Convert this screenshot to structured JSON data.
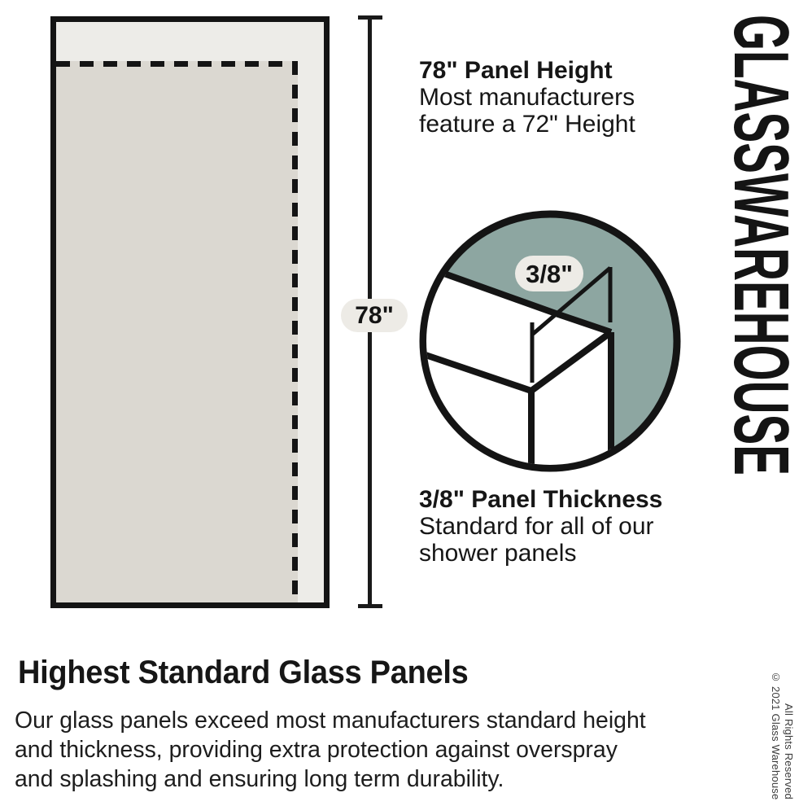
{
  "brand": {
    "name": "GLASSWAREHOUSE"
  },
  "panel_diagram": {
    "height_badge": "78\"",
    "height_callout": {
      "title": "78\" Panel Height",
      "lines": [
        "Most manufacturers",
        "feature a 72\" Height"
      ]
    }
  },
  "thickness_diagram": {
    "thickness_badge": "3/8\"",
    "thickness_callout": {
      "title": "3/8\" Panel Thickness",
      "lines": [
        "Standard for all of our",
        "shower panels"
      ]
    }
  },
  "footer": {
    "heading": "Highest Standard Glass Panels",
    "paragraph_lines": [
      "Our glass panels exceed most manufacturers standard height",
      "and thickness, providing extra protection against overspray",
      "and splashing and ensuring long term durability."
    ],
    "copyright_lines": [
      "© 2021 Glass Warehouse",
      "All Rights Reserved"
    ]
  },
  "colors": {
    "ink": "#141414",
    "panel_fill": "#edece8",
    "panel_inner_fill": "#dbd8d1",
    "badge_fill": "#edebe6",
    "accent_teal": "#8da6a1",
    "copyright_gray": "#3c3c3c"
  }
}
